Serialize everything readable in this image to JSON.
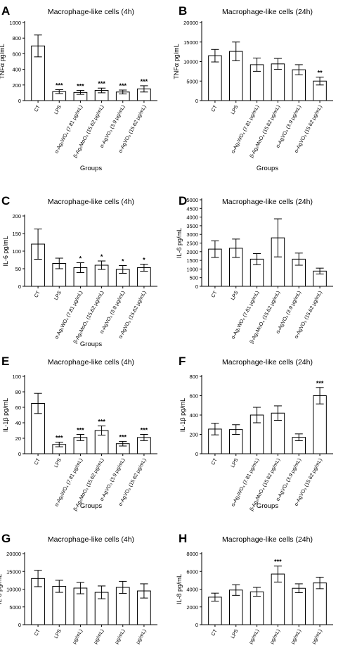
{
  "group_labels": [
    "CT",
    "LPS",
    "α-Ag₂WO₄ (7.81 µg/mL)",
    "β-Ag₂MoO₄ (15.62 µg/mL)",
    "α-AgVO₃ (3.9 µg/mL)",
    "α-AgVO₃ (15.62 µg/mL)"
  ],
  "group_labels_cropped": [
    "CT",
    "LPS",
    "µg/mL)",
    "µg/mL)",
    "µg/mL)",
    "µg/mL)"
  ],
  "chart_data": [
    {
      "panel": "A",
      "type": "bar",
      "title": "Macrophage-like cells (4h)",
      "ylabel": "TNFα pg/mL",
      "xlabel": "Groups",
      "ylim": [
        0,
        1000
      ],
      "yticks": [
        0,
        200,
        400,
        600,
        800,
        1000
      ],
      "values": [
        700,
        115,
        105,
        130,
        110,
        150
      ],
      "errors": [
        140,
        25,
        25,
        30,
        25,
        40
      ],
      "annotations": [
        "",
        "***",
        "***",
        "***",
        "***",
        "***"
      ]
    },
    {
      "panel": "B",
      "type": "bar",
      "title": "Macrophage-like cells (24h)",
      "ylabel": "TNFα pg/mL",
      "xlabel": "Groups",
      "ylim": [
        0,
        20000
      ],
      "yticks": [
        0,
        5000,
        10000,
        15000,
        20000
      ],
      "values": [
        11500,
        12600,
        9200,
        9400,
        7900,
        5000
      ],
      "errors": [
        1600,
        2400,
        1700,
        1400,
        1300,
        1000
      ],
      "annotations": [
        "",
        "",
        "",
        "",
        "",
        "**"
      ]
    },
    {
      "panel": "C",
      "type": "bar",
      "title": "Macrophage-like cells (4h)",
      "ylabel": "IL-6 pg/mL",
      "xlabel": "Groups",
      "ylim": [
        0,
        200
      ],
      "yticks": [
        0,
        50,
        100,
        150,
        200
      ],
      "values": [
        120,
        65,
        53,
        60,
        48,
        53
      ],
      "errors": [
        43,
        15,
        14,
        12,
        11,
        10
      ],
      "annotations": [
        "",
        "",
        "*",
        "*",
        "*",
        "*"
      ]
    },
    {
      "panel": "D",
      "type": "bar",
      "title": "Macrophage-like cells (24h)",
      "ylabel": "IL-6 pg/mL",
      "xlabel": "",
      "ylim": [
        0,
        5000
      ],
      "yticks": [
        0,
        500,
        1000,
        1500,
        2000,
        2500,
        3000,
        3500,
        4000,
        4500,
        5000
      ],
      "values": [
        2150,
        2200,
        1570,
        2800,
        1570,
        880
      ],
      "errors": [
        480,
        530,
        320,
        1100,
        350,
        170
      ],
      "annotations": [
        "",
        "",
        "",
        "",
        "",
        ""
      ]
    },
    {
      "panel": "E",
      "type": "bar",
      "title": "Macrophage-like cells (4h)",
      "ylabel": "IL-1β pg/mL",
      "xlabel": "Groups",
      "ylim": [
        0,
        100
      ],
      "yticks": [
        0,
        20,
        40,
        60,
        80,
        100
      ],
      "values": [
        65,
        12,
        21,
        30,
        13,
        21
      ],
      "errors": [
        13,
        3,
        4,
        6,
        3,
        4
      ],
      "annotations": [
        "",
        "***",
        "***",
        "***",
        "***",
        "***"
      ]
    },
    {
      "panel": "F",
      "type": "bar",
      "title": "Macrophage-like cells (24h)",
      "ylabel": "IL-1β pg/mL",
      "xlabel": "Groups",
      "ylim": [
        0,
        800
      ],
      "yticks": [
        0,
        200,
        400,
        600,
        800
      ],
      "values": [
        255,
        250,
        400,
        420,
        170,
        600
      ],
      "errors": [
        60,
        50,
        80,
        75,
        35,
        85
      ],
      "annotations": [
        "",
        "",
        "",
        "",
        "",
        "***"
      ]
    },
    {
      "panel": "G",
      "type": "bar",
      "title": "Macrophage-like cells (4h)",
      "ylabel": "IL-8 pg/mL",
      "xlabel": "",
      "ylim": [
        0,
        20000
      ],
      "yticks": [
        0,
        5000,
        10000,
        15000,
        20000
      ],
      "values": [
        13000,
        10800,
        10300,
        9100,
        10500,
        9500
      ],
      "errors": [
        2300,
        1700,
        1600,
        1800,
        1700,
        2000
      ],
      "annotations": [
        "",
        "",
        "",
        "",
        "",
        ""
      ]
    },
    {
      "panel": "H",
      "type": "bar",
      "title": "Macrophage-like cells (24h)",
      "ylabel": "IL-8 pg/mL",
      "xlabel": "",
      "ylim": [
        0,
        8000
      ],
      "yticks": [
        0,
        2000,
        4000,
        6000,
        8000
      ],
      "values": [
        3100,
        3900,
        3700,
        5700,
        4100,
        4700
      ],
      "errors": [
        450,
        600,
        500,
        900,
        500,
        650
      ],
      "annotations": [
        "",
        "",
        "",
        "***",
        "",
        ""
      ]
    }
  ]
}
